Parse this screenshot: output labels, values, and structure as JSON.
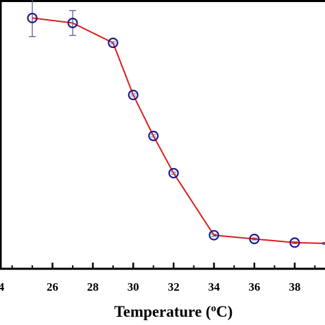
{
  "chart_data": {
    "type": "line",
    "title": "",
    "xlabel": "Temperature (",
    "xlabel_sup": "o",
    "xlabel_suffix": "C)",
    "ylabel": "",
    "xlim": [
      23.4,
      39.5
    ],
    "ylim": [
      0,
      1
    ],
    "x_ticks": [
      26,
      28,
      30,
      32,
      34,
      36,
      38
    ],
    "grid": false,
    "legend": "none",
    "series": [
      {
        "line_color": "#e0191c",
        "marker_color": "#1a1a8c",
        "marker": "open-circle",
        "points": [
          {
            "x": 25,
            "y": 0.955,
            "err": 0.075
          },
          {
            "x": 27,
            "y": 0.935,
            "err": 0.05
          },
          {
            "x": 29,
            "y": 0.855,
            "err": 0
          },
          {
            "x": 30,
            "y": 0.645,
            "err": 0
          },
          {
            "x": 31,
            "y": 0.48,
            "err": 0
          },
          {
            "x": 32,
            "y": 0.33,
            "err": 0
          },
          {
            "x": 34,
            "y": 0.08,
            "err": 0
          },
          {
            "x": 36,
            "y": 0.065,
            "err": 0
          },
          {
            "x": 38,
            "y": 0.05,
            "err": 0
          },
          {
            "x": 39.5,
            "y": 0.047,
            "err": 0
          }
        ]
      }
    ]
  }
}
